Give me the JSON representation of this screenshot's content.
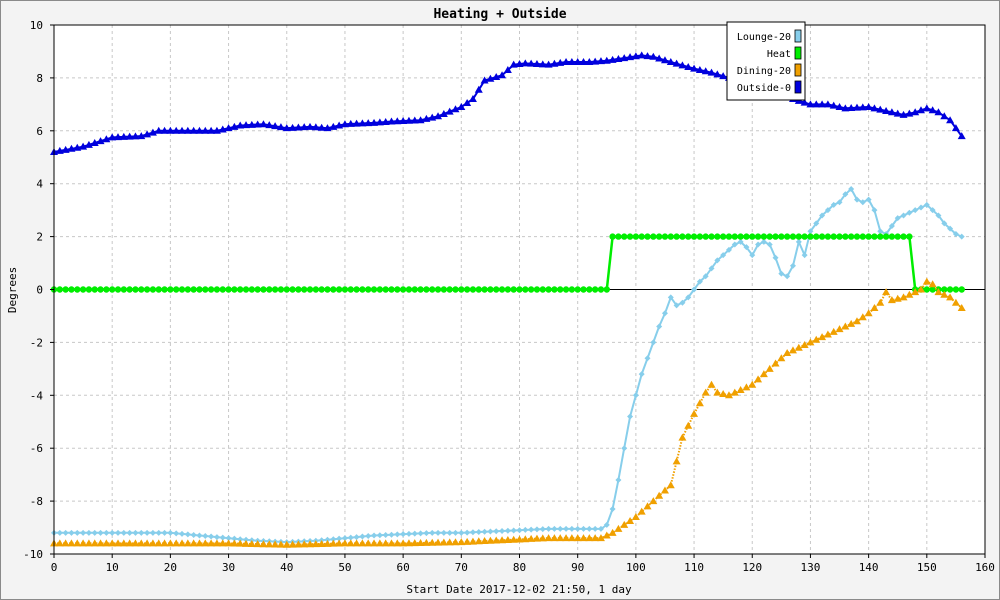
{
  "chart_data": {
    "type": "line",
    "title": "Heating + Outside",
    "xlabel": "Start Date 2017-12-02 21:50, 1 day",
    "ylabel": "Degrees",
    "xlim": [
      0,
      160
    ],
    "ylim": [
      -10,
      10
    ],
    "xticks": [
      0,
      10,
      20,
      30,
      40,
      50,
      60,
      70,
      80,
      90,
      100,
      110,
      120,
      130,
      140,
      150,
      160
    ],
    "yticks": [
      -10,
      -8,
      -6,
      -4,
      -2,
      0,
      2,
      4,
      6,
      8,
      10
    ],
    "grid": true,
    "legend_position": "top-right",
    "series": [
      {
        "name": "Lounge-20",
        "color": "#87ceeb",
        "marker": "diamond",
        "points": [
          [
            0,
            -9.2
          ],
          [
            5,
            -9.2
          ],
          [
            10,
            -9.2
          ],
          [
            15,
            -9.2
          ],
          [
            20,
            -9.2
          ],
          [
            25,
            -9.3
          ],
          [
            30,
            -9.4
          ],
          [
            35,
            -9.5
          ],
          [
            40,
            -9.55
          ],
          [
            45,
            -9.5
          ],
          [
            50,
            -9.4
          ],
          [
            55,
            -9.3
          ],
          [
            60,
            -9.25
          ],
          [
            65,
            -9.2
          ],
          [
            70,
            -9.2
          ],
          [
            75,
            -9.15
          ],
          [
            80,
            -9.1
          ],
          [
            85,
            -9.05
          ],
          [
            90,
            -9.05
          ],
          [
            94,
            -9.05
          ],
          [
            95,
            -8.9
          ],
          [
            96,
            -8.3
          ],
          [
            97,
            -7.2
          ],
          [
            98,
            -6.0
          ],
          [
            99,
            -4.8
          ],
          [
            100,
            -4.0
          ],
          [
            101,
            -3.2
          ],
          [
            102,
            -2.6
          ],
          [
            103,
            -2.0
          ],
          [
            104,
            -1.4
          ],
          [
            105,
            -0.9
          ],
          [
            106,
            -0.3
          ],
          [
            107,
            -0.6
          ],
          [
            108,
            -0.5
          ],
          [
            109,
            -0.3
          ],
          [
            110,
            0.0
          ],
          [
            111,
            0.3
          ],
          [
            112,
            0.5
          ],
          [
            113,
            0.8
          ],
          [
            114,
            1.1
          ],
          [
            115,
            1.3
          ],
          [
            116,
            1.5
          ],
          [
            117,
            1.7
          ],
          [
            118,
            1.8
          ],
          [
            119,
            1.6
          ],
          [
            120,
            1.3
          ],
          [
            121,
            1.7
          ],
          [
            122,
            1.8
          ],
          [
            123,
            1.7
          ],
          [
            124,
            1.2
          ],
          [
            125,
            0.6
          ],
          [
            126,
            0.5
          ],
          [
            127,
            0.9
          ],
          [
            128,
            1.8
          ],
          [
            129,
            1.3
          ],
          [
            130,
            2.2
          ],
          [
            131,
            2.5
          ],
          [
            132,
            2.8
          ],
          [
            133,
            3.0
          ],
          [
            134,
            3.2
          ],
          [
            135,
            3.3
          ],
          [
            136,
            3.6
          ],
          [
            137,
            3.8
          ],
          [
            138,
            3.4
          ],
          [
            139,
            3.3
          ],
          [
            140,
            3.4
          ],
          [
            141,
            3.0
          ],
          [
            142,
            2.2
          ],
          [
            143,
            2.1
          ],
          [
            144,
            2.4
          ],
          [
            145,
            2.7
          ],
          [
            146,
            2.8
          ],
          [
            147,
            2.9
          ],
          [
            148,
            3.0
          ],
          [
            149,
            3.1
          ],
          [
            150,
            3.2
          ],
          [
            151,
            3.0
          ],
          [
            152,
            2.8
          ],
          [
            153,
            2.5
          ],
          [
            154,
            2.3
          ],
          [
            155,
            2.1
          ],
          [
            156,
            2.0
          ]
        ]
      },
      {
        "name": "Heat",
        "color": "#00ee00",
        "marker": "circle",
        "points": [
          [
            0,
            0
          ],
          [
            95,
            0
          ],
          [
            96,
            2
          ],
          [
            147,
            2
          ],
          [
            148,
            0
          ],
          [
            156,
            0
          ]
        ]
      },
      {
        "name": "Dining-20",
        "color": "#f0a000",
        "marker": "triangle",
        "points": [
          [
            0,
            -9.6
          ],
          [
            10,
            -9.6
          ],
          [
            20,
            -9.6
          ],
          [
            30,
            -9.6
          ],
          [
            40,
            -9.65
          ],
          [
            50,
            -9.6
          ],
          [
            60,
            -9.6
          ],
          [
            70,
            -9.55
          ],
          [
            75,
            -9.5
          ],
          [
            80,
            -9.45
          ],
          [
            85,
            -9.4
          ],
          [
            90,
            -9.4
          ],
          [
            94,
            -9.4
          ],
          [
            96,
            -9.2
          ],
          [
            98,
            -8.9
          ],
          [
            100,
            -8.6
          ],
          [
            102,
            -8.2
          ],
          [
            104,
            -7.8
          ],
          [
            106,
            -7.4
          ],
          [
            108,
            -5.6
          ],
          [
            110,
            -4.7
          ],
          [
            112,
            -3.9
          ],
          [
            113,
            -3.6
          ],
          [
            114,
            -3.9
          ],
          [
            116,
            -4.0
          ],
          [
            118,
            -3.8
          ],
          [
            120,
            -3.6
          ],
          [
            122,
            -3.2
          ],
          [
            124,
            -2.8
          ],
          [
            126,
            -2.4
          ],
          [
            128,
            -2.2
          ],
          [
            130,
            -2.0
          ],
          [
            132,
            -1.8
          ],
          [
            134,
            -1.6
          ],
          [
            136,
            -1.4
          ],
          [
            138,
            -1.2
          ],
          [
            140,
            -0.9
          ],
          [
            142,
            -0.5
          ],
          [
            143,
            -0.1
          ],
          [
            144,
            -0.4
          ],
          [
            146,
            -0.3
          ],
          [
            148,
            -0.1
          ],
          [
            149,
            0.0
          ],
          [
            150,
            0.3
          ],
          [
            151,
            0.2
          ],
          [
            152,
            -0.1
          ],
          [
            154,
            -0.3
          ],
          [
            156,
            -0.7
          ]
        ]
      },
      {
        "name": "Outside-0",
        "color": "#0000dd",
        "marker": "triangle",
        "points": [
          [
            0,
            5.2
          ],
          [
            5,
            5.4
          ],
          [
            10,
            5.75
          ],
          [
            15,
            5.8
          ],
          [
            18,
            6.0
          ],
          [
            25,
            6.0
          ],
          [
            28,
            6.0
          ],
          [
            32,
            6.2
          ],
          [
            36,
            6.25
          ],
          [
            40,
            6.1
          ],
          [
            44,
            6.15
          ],
          [
            47,
            6.1
          ],
          [
            50,
            6.25
          ],
          [
            55,
            6.3
          ],
          [
            58,
            6.35
          ],
          [
            63,
            6.4
          ],
          [
            66,
            6.55
          ],
          [
            70,
            6.9
          ],
          [
            72,
            7.2
          ],
          [
            74,
            7.9
          ],
          [
            77,
            8.1
          ],
          [
            79,
            8.5
          ],
          [
            81,
            8.55
          ],
          [
            85,
            8.5
          ],
          [
            88,
            8.6
          ],
          [
            92,
            8.6
          ],
          [
            95,
            8.65
          ],
          [
            98,
            8.75
          ],
          [
            101,
            8.85
          ],
          [
            103,
            8.8
          ],
          [
            106,
            8.6
          ],
          [
            110,
            8.35
          ],
          [
            113,
            8.2
          ],
          [
            116,
            8.0
          ],
          [
            118,
            7.9
          ],
          [
            121,
            7.7
          ],
          [
            124,
            7.4
          ],
          [
            127,
            7.2
          ],
          [
            130,
            7.0
          ],
          [
            133,
            7.0
          ],
          [
            136,
            6.85
          ],
          [
            140,
            6.9
          ],
          [
            143,
            6.75
          ],
          [
            146,
            6.6
          ],
          [
            148,
            6.7
          ],
          [
            150,
            6.85
          ],
          [
            152,
            6.7
          ],
          [
            154,
            6.4
          ],
          [
            156,
            5.8
          ]
        ]
      }
    ]
  }
}
